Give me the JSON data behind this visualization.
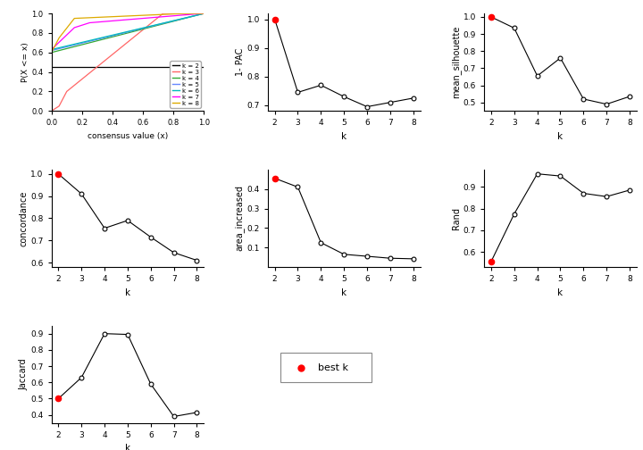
{
  "k_values": [
    2,
    3,
    4,
    5,
    6,
    7,
    8
  ],
  "one_minus_pac": [
    1.0,
    0.745,
    0.77,
    0.73,
    0.695,
    0.71,
    0.725
  ],
  "mean_silhouette": [
    1.0,
    0.935,
    0.655,
    0.76,
    0.52,
    0.49,
    0.535
  ],
  "concordance": [
    1.0,
    0.91,
    0.755,
    0.79,
    0.715,
    0.645,
    0.61
  ],
  "area_increased": [
    0.455,
    0.41,
    0.125,
    0.065,
    0.055,
    0.045,
    0.042
  ],
  "rand": [
    0.555,
    0.775,
    0.96,
    0.95,
    0.87,
    0.855,
    0.885
  ],
  "jaccard": [
    0.5,
    0.63,
    0.9,
    0.895,
    0.59,
    0.39,
    0.415
  ],
  "best_k_pac": 2,
  "best_k_sil": 2,
  "best_k_conc": 2,
  "best_k_area": 2,
  "best_k_rand": 2,
  "best_k_jacc": 2,
  "ecdf_colors": [
    "#000000",
    "#ff6666",
    "#33aa33",
    "#6688ff",
    "#00bbbb",
    "#ff00ff",
    "#ddaa00"
  ],
  "ecdf_labels": [
    "k = 2",
    "k = 3",
    "k = 4",
    "k = 5",
    "k = 6",
    "k = 7",
    "k = 8"
  ]
}
